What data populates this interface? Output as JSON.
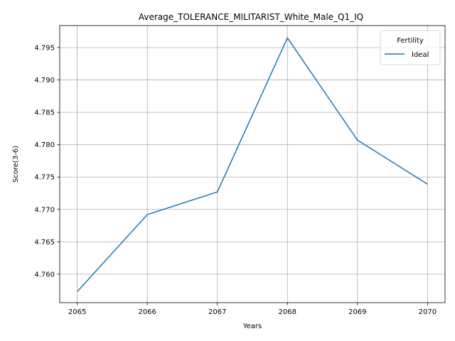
{
  "chart_data": {
    "type": "line",
    "title": "Average_TOLERANCE_MILITARIST_White_Male_Q1_IQ",
    "xlabel": "Years",
    "ylabel": "Score(3-6)",
    "x": [
      2065,
      2066,
      2067,
      2068,
      2069,
      2070
    ],
    "x_ticks": [
      "2065",
      "2066",
      "2067",
      "2068",
      "2069",
      "2070"
    ],
    "y_ticks": [
      "4.760",
      "4.765",
      "4.770",
      "4.775",
      "4.780",
      "4.785",
      "4.790",
      "4.795"
    ],
    "y_tick_values": [
      4.76,
      4.765,
      4.77,
      4.775,
      4.78,
      4.785,
      4.79,
      4.795
    ],
    "xlim": [
      2064.75,
      2070.25
    ],
    "ylim": [
      4.7556,
      4.7984
    ],
    "grid": true,
    "legend": {
      "title": "Fertility",
      "placement": "top-right"
    },
    "series": [
      {
        "name": "Ideal",
        "color": "#1f77b4",
        "values": [
          4.7573,
          4.7692,
          4.7727,
          4.7965,
          4.7807,
          4.7739
        ]
      }
    ]
  }
}
